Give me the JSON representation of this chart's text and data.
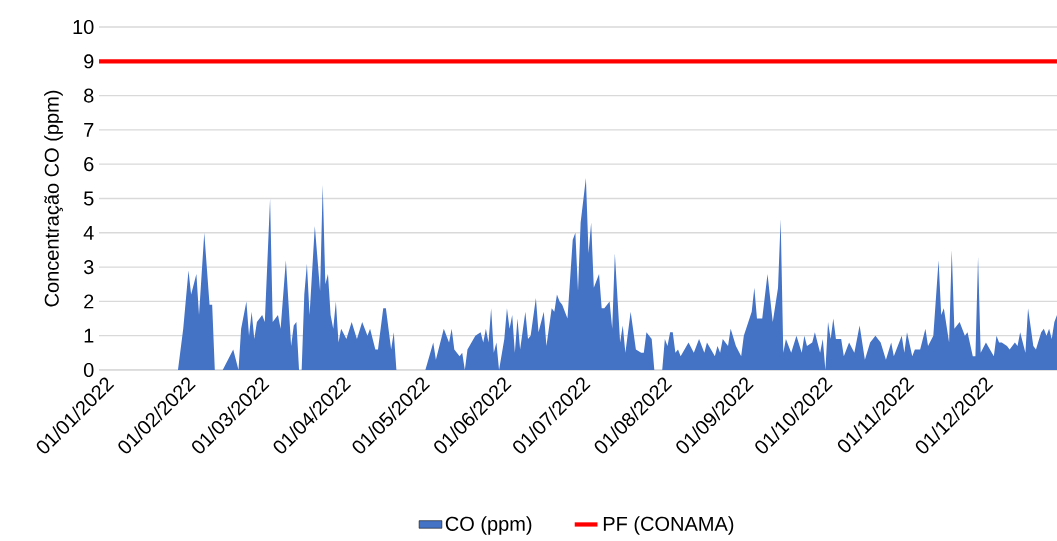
{
  "chart_data": {
    "type": "area",
    "ylabel": "Concentração CO (ppm)",
    "xlim": [
      "2022-01-01",
      "2022-12-31"
    ],
    "xticks": [
      {
        "value": "2022-01-01",
        "label": "01/01/2022"
      },
      {
        "value": "2022-02-01",
        "label": "01/02/2022"
      },
      {
        "value": "2022-03-01",
        "label": "01/03/2022"
      },
      {
        "value": "2022-04-01",
        "label": "01/04/2022"
      },
      {
        "value": "2022-05-01",
        "label": "01/05/2022"
      },
      {
        "value": "2022-06-01",
        "label": "01/06/2022"
      },
      {
        "value": "2022-07-01",
        "label": "01/07/2022"
      },
      {
        "value": "2022-08-01",
        "label": "01/08/2022"
      },
      {
        "value": "2022-09-01",
        "label": "01/09/2022"
      },
      {
        "value": "2022-10-01",
        "label": "01/10/2022"
      },
      {
        "value": "2022-11-01",
        "label": "01/11/2022"
      },
      {
        "value": "2022-12-01",
        "label": "01/12/2022"
      }
    ],
    "ylim": [
      0,
      10
    ],
    "yticks": [
      0,
      1,
      2,
      3,
      4,
      5,
      6,
      7,
      8,
      9,
      10
    ],
    "grid": "y",
    "legend": "bottom",
    "series": [
      {
        "name": "CO (ppm)",
        "color": "#4472c4",
        "x": [
          "2022-01-01",
          "2022-01-31",
          "2022-02-02",
          "2022-02-04",
          "2022-02-05",
          "2022-02-07",
          "2022-02-08",
          "2022-02-10",
          "2022-02-12",
          "2022-02-13",
          "2022-02-14",
          "2022-02-17",
          "2022-02-21",
          "2022-02-23",
          "2022-02-24",
          "2022-02-26",
          "2022-02-27",
          "2022-02-28",
          "2022-03-01",
          "2022-03-02",
          "2022-03-04",
          "2022-03-05",
          "2022-03-07",
          "2022-03-08",
          "2022-03-10",
          "2022-03-11",
          "2022-03-13",
          "2022-03-15",
          "2022-03-16",
          "2022-03-17",
          "2022-03-18",
          "2022-03-19",
          "2022-03-20",
          "2022-03-21",
          "2022-03-22",
          "2022-03-24",
          "2022-03-26",
          "2022-03-27",
          "2022-03-28",
          "2022-03-29",
          "2022-03-30",
          "2022-03-31",
          "2022-04-01",
          "2022-04-02",
          "2022-04-03",
          "2022-04-05",
          "2022-04-07",
          "2022-04-09",
          "2022-04-11",
          "2022-04-13",
          "2022-04-14",
          "2022-04-16",
          "2022-04-17",
          "2022-04-19",
          "2022-04-20",
          "2022-04-22",
          "2022-04-23",
          "2022-04-24",
          "2022-05-05",
          "2022-05-08",
          "2022-05-09",
          "2022-05-12",
          "2022-05-14",
          "2022-05-15",
          "2022-05-16",
          "2022-05-18",
          "2022-05-19",
          "2022-05-20",
          "2022-05-21",
          "2022-05-24",
          "2022-05-26",
          "2022-05-27",
          "2022-05-28",
          "2022-05-29",
          "2022-05-30",
          "2022-05-31",
          "2022-06-01",
          "2022-06-02",
          "2022-06-04",
          "2022-06-05",
          "2022-06-06",
          "2022-06-07",
          "2022-06-08",
          "2022-06-09",
          "2022-06-10",
          "2022-06-12",
          "2022-06-13",
          "2022-06-14",
          "2022-06-16",
          "2022-06-17",
          "2022-06-19",
          "2022-06-20",
          "2022-06-22",
          "2022-06-23",
          "2022-06-24",
          "2022-06-25",
          "2022-06-26",
          "2022-06-28",
          "2022-06-30",
          "2022-07-01",
          "2022-07-02",
          "2022-07-03",
          "2022-07-05",
          "2022-07-06",
          "2022-07-07",
          "2022-07-08",
          "2022-07-10",
          "2022-07-11",
          "2022-07-12",
          "2022-07-14",
          "2022-07-15",
          "2022-07-16",
          "2022-07-18",
          "2022-07-19",
          "2022-07-20",
          "2022-07-22",
          "2022-07-24",
          "2022-07-26",
          "2022-07-27",
          "2022-07-28",
          "2022-07-30",
          "2022-07-31",
          "2022-08-03",
          "2022-08-04",
          "2022-08-05",
          "2022-08-06",
          "2022-08-07",
          "2022-08-08",
          "2022-08-09",
          "2022-08-10",
          "2022-08-13",
          "2022-08-15",
          "2022-08-17",
          "2022-08-19",
          "2022-08-20",
          "2022-08-23",
          "2022-08-24",
          "2022-08-25",
          "2022-08-26",
          "2022-08-28",
          "2022-08-29",
          "2022-08-31",
          "2022-09-02",
          "2022-09-03",
          "2022-09-06",
          "2022-09-07",
          "2022-09-08",
          "2022-09-10",
          "2022-09-12",
          "2022-09-14",
          "2022-09-16",
          "2022-09-17",
          "2022-09-18",
          "2022-09-19",
          "2022-09-21",
          "2022-09-23",
          "2022-09-25",
          "2022-09-26",
          "2022-09-27",
          "2022-09-29",
          "2022-09-30",
          "2022-10-02",
          "2022-10-03",
          "2022-10-04",
          "2022-10-05",
          "2022-10-06",
          "2022-10-07",
          "2022-10-08",
          "2022-10-10",
          "2022-10-11",
          "2022-10-13",
          "2022-10-15",
          "2022-10-17",
          "2022-10-19",
          "2022-10-21",
          "2022-10-23",
          "2022-10-25",
          "2022-10-27",
          "2022-10-29",
          "2022-10-30",
          "2022-11-02",
          "2022-11-03",
          "2022-11-04",
          "2022-11-06",
          "2022-11-07",
          "2022-11-09",
          "2022-11-11",
          "2022-11-12",
          "2022-11-14",
          "2022-11-16",
          "2022-11-17",
          "2022-11-18",
          "2022-11-20",
          "2022-11-21",
          "2022-11-22",
          "2022-11-24",
          "2022-11-26",
          "2022-11-27",
          "2022-11-29",
          "2022-11-30",
          "2022-12-01",
          "2022-12-02",
          "2022-12-04",
          "2022-12-07",
          "2022-12-08",
          "2022-12-09",
          "2022-12-10",
          "2022-12-12",
          "2022-12-13",
          "2022-12-15",
          "2022-12-16",
          "2022-12-17",
          "2022-12-19",
          "2022-12-20",
          "2022-12-22",
          "2022-12-23",
          "2022-12-25",
          "2022-12-26",
          "2022-12-27",
          "2022-12-28",
          "2022-12-29",
          "2022-12-30",
          "2022-12-31"
        ],
        "values": [
          0,
          0,
          1.2,
          2.9,
          2.2,
          2.8,
          1.6,
          4.0,
          1.9,
          1.9,
          0,
          0,
          0.6,
          0,
          1.2,
          2.0,
          1.0,
          1.7,
          0.9,
          1.4,
          1.6,
          1.4,
          5.0,
          1.4,
          1.6,
          1.2,
          3.2,
          0.7,
          1.3,
          1.4,
          0,
          0,
          2.2,
          3.1,
          1.6,
          4.2,
          2.3,
          5.4,
          2.5,
          2.8,
          1.6,
          1.2,
          2.0,
          0.8,
          1.2,
          0.9,
          1.4,
          0.9,
          1.4,
          1.0,
          1.2,
          0.6,
          0.6,
          1.8,
          1.8,
          0.6,
          1.1,
          0,
          0,
          0.8,
          0.3,
          1.2,
          0.8,
          1.2,
          0.6,
          0.4,
          0.5,
          0,
          0.6,
          1.0,
          1.1,
          0.8,
          1.2,
          0.8,
          1.8,
          0.5,
          0.8,
          0,
          0.9,
          1.8,
          1.2,
          1.6,
          0.5,
          1.5,
          0.6,
          1.7,
          0.9,
          1.0,
          2.1,
          1.1,
          1.7,
          0.7,
          1.8,
          1.7,
          2.2,
          2.0,
          1.9,
          1.5,
          3.8,
          4.0,
          2.3,
          4.3,
          5.6,
          3.4,
          4.3,
          2.4,
          2.8,
          1.8,
          1.8,
          2.0,
          1.2,
          3.4,
          0.8,
          1.3,
          0.5,
          1.7,
          0.6,
          0.5,
          0.5,
          1.1,
          0.9,
          0,
          0,
          0.9,
          0.7,
          1.1,
          1.1,
          0.5,
          0.6,
          0.4,
          0.8,
          0.5,
          0.9,
          0.5,
          0.8,
          0.4,
          0.7,
          0.5,
          0.9,
          0.7,
          1.2,
          0.7,
          0.4,
          1.0,
          1.7,
          2.4,
          1.5,
          1.5,
          2.8,
          1.4,
          2.4,
          4.4,
          0.5,
          0.9,
          0.5,
          1.0,
          0.5,
          1.0,
          0.7,
          0.8,
          1.1,
          0.5,
          0.9,
          0,
          1.4,
          0.9,
          1.5,
          0.9,
          0.9,
          0.4,
          0.8,
          0.5,
          1.3,
          0.3,
          0.8,
          1.0,
          0.8,
          0.3,
          0.8,
          0.4,
          1.0,
          0.5,
          1.1,
          0.4,
          0.6,
          0.6,
          1.2,
          0.7,
          1.0,
          3.2,
          1.6,
          1.8,
          0.8,
          3.5,
          1.2,
          1.4,
          1.0,
          1.1,
          0.4,
          0.4,
          3.3,
          0.5,
          0.8,
          0.4,
          1.0,
          0.8,
          0.8,
          0.7,
          0.6,
          0.8,
          0.7,
          1.1,
          0.5,
          1.8,
          0.7,
          0.6,
          1.1,
          1.2,
          1.0,
          1.2,
          0.9,
          1.4,
          1.6
        ]
      },
      {
        "name": "PF (CONAMA)",
        "type": "line",
        "color": "#ff0000",
        "x": [
          "2022-01-01",
          "2022-12-31"
        ],
        "values": [
          9,
          9
        ]
      }
    ]
  }
}
